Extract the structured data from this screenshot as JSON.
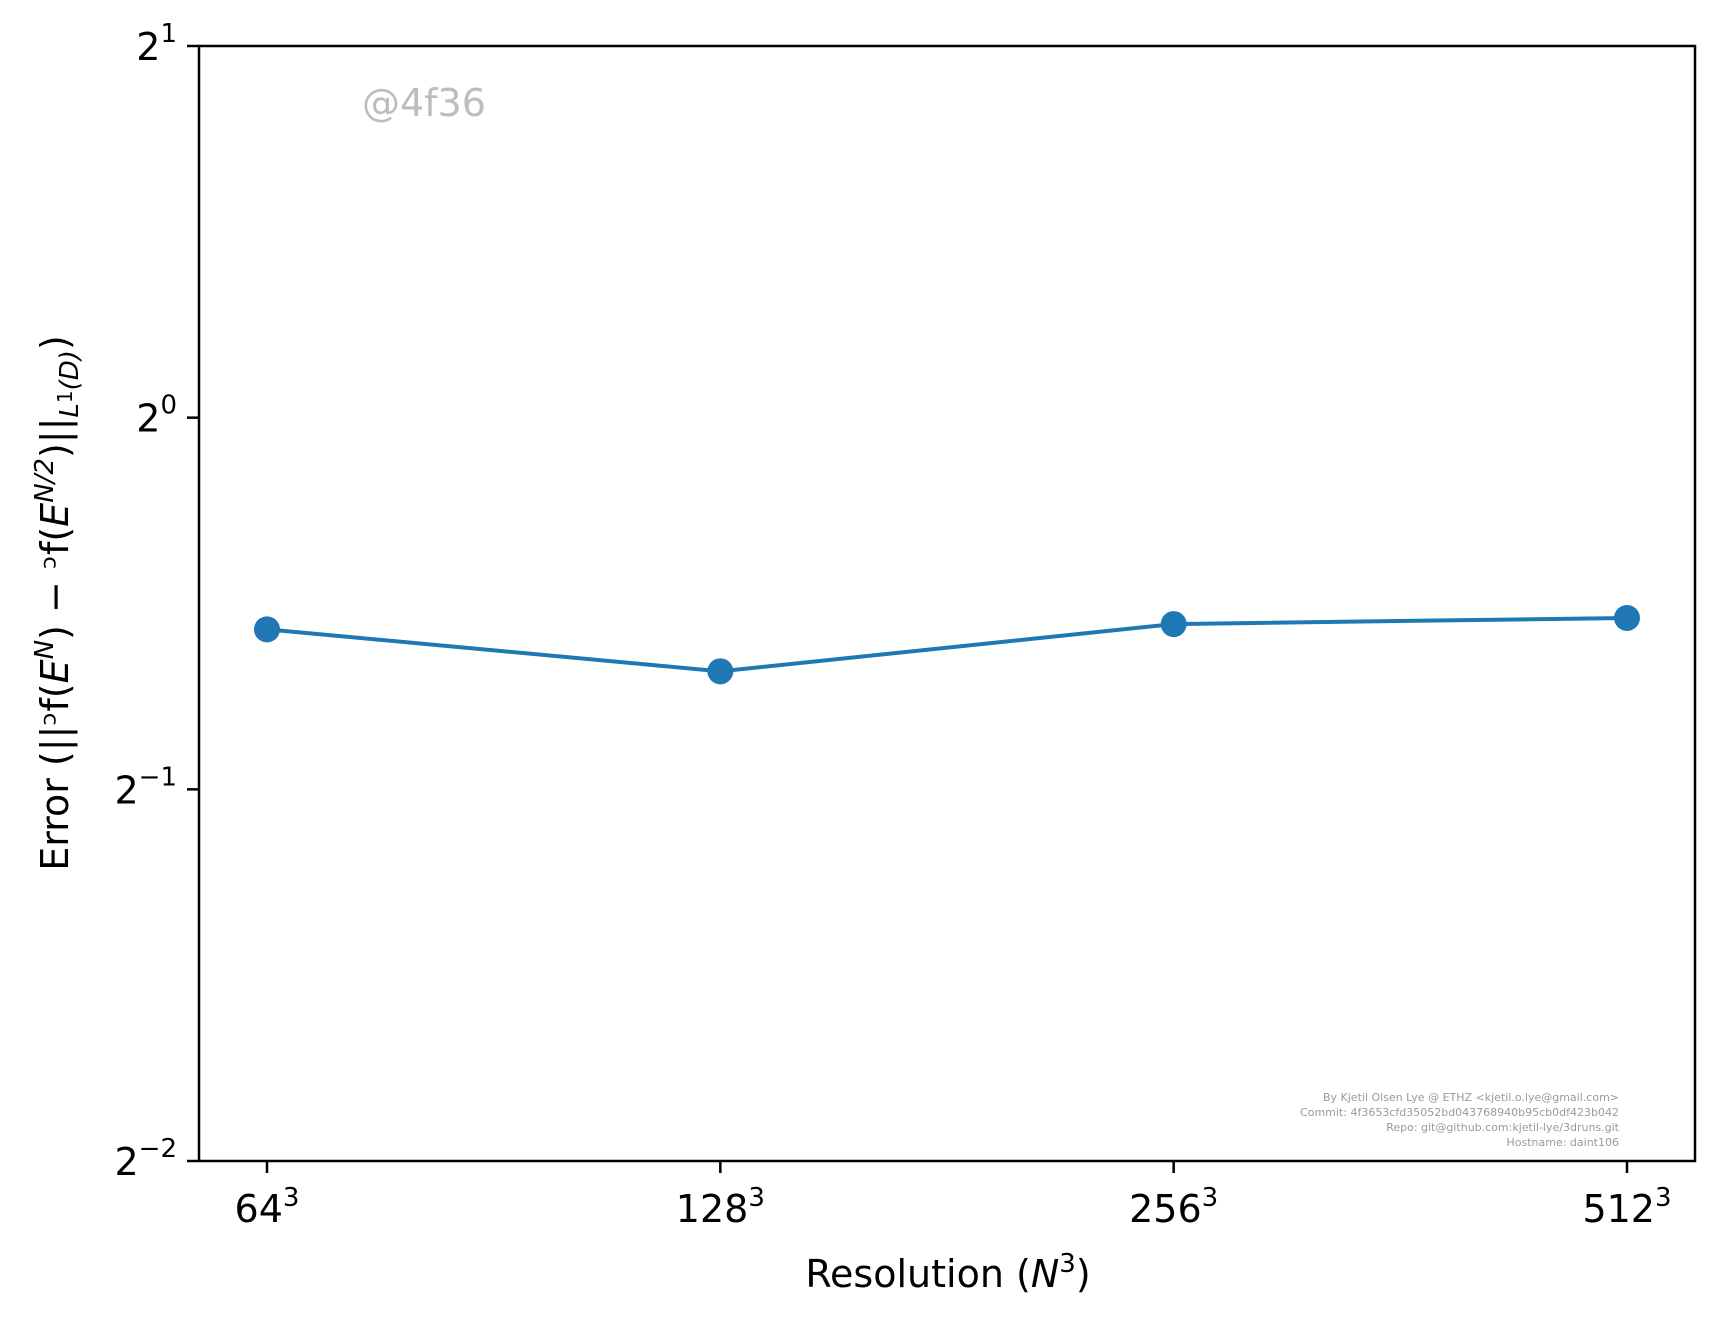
{
  "chart_data": {
    "type": "line",
    "categories": [
      "64",
      "128",
      "256",
      "512"
    ],
    "category_exponent": "3",
    "series": [
      {
        "values": [
          0.6738,
          0.6231,
          0.6805,
          0.6883
        ],
        "color": "#1f77b4",
        "marker": "circle"
      }
    ],
    "y_scale": "log2",
    "ylim": [
      0.25,
      2
    ],
    "yticks": [
      {
        "base": "2",
        "exp": "−2"
      },
      {
        "base": "2",
        "exp": "−1"
      },
      {
        "base": "2",
        "exp": "0"
      },
      {
        "base": "2",
        "exp": "1"
      }
    ],
    "xlabel": {
      "text": "Resolution (",
      "var": "N",
      "exp": "3",
      "close": ")"
    },
    "ylabel": {
      "p1": "Error (||ᵓf(",
      "p2": "E",
      "p3": "N",
      "p4": ") − ᵓf(",
      "p5": "E",
      "p6": "N/2",
      "p7": ")||",
      "p8": "L",
      "p9": "1",
      "p10": "(D)",
      "p11": ")"
    },
    "grid": false,
    "legend": "none"
  },
  "watermark": "@4f36",
  "credits": [
    "By Kjetil Olsen Lye @ ETHZ <kjetil.o.lye@gmail.com>",
    "Commit: 4f3653cfd35052bd043768940b95cb0df423b042",
    "Repo: git@github.com:kjetil-lye/3druns.git",
    "Hostname: daint106"
  ]
}
